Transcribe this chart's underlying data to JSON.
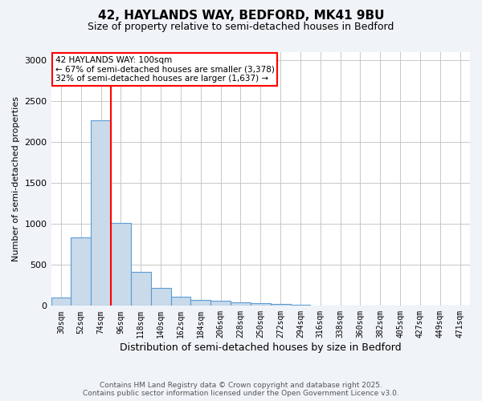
{
  "title_line1": "42, HAYLANDS WAY, BEDFORD, MK41 9BU",
  "title_line2": "Size of property relative to semi-detached houses in Bedford",
  "categories": [
    "30sqm",
    "52sqm",
    "74sqm",
    "96sqm",
    "118sqm",
    "140sqm",
    "162sqm",
    "184sqm",
    "206sqm",
    "228sqm",
    "250sqm",
    "272sqm",
    "294sqm",
    "316sqm",
    "338sqm",
    "360sqm",
    "382sqm",
    "405sqm",
    "427sqm",
    "449sqm",
    "471sqm"
  ],
  "values": [
    100,
    840,
    2270,
    1010,
    410,
    215,
    110,
    75,
    60,
    45,
    30,
    20,
    10,
    8,
    5,
    4,
    3,
    2,
    1,
    1,
    1
  ],
  "bar_color": "#c9daea",
  "bar_edge_color": "#5b9bd5",
  "grid_color": "#c8c8c8",
  "vline_color": "red",
  "vline_x_index": 3,
  "annotation_text": "42 HAYLANDS WAY: 100sqm\n← 67% of semi-detached houses are smaller (3,378)\n32% of semi-detached houses are larger (1,637) →",
  "annotation_box_color": "white",
  "annotation_box_edge": "red",
  "xlabel": "Distribution of semi-detached houses by size in Bedford",
  "ylabel": "Number of semi-detached properties",
  "ylim": [
    0,
    3100
  ],
  "yticks": [
    0,
    500,
    1000,
    1500,
    2000,
    2500,
    3000
  ],
  "footer_line1": "Contains HM Land Registry data © Crown copyright and database right 2025.",
  "footer_line2": "Contains public sector information licensed under the Open Government Licence v3.0.",
  "bg_color": "#f0f4f8",
  "plot_bg_color": "white",
  "title1_fontsize": 11,
  "title2_fontsize": 9,
  "xlabel_fontsize": 9,
  "ylabel_fontsize": 8,
  "tick_fontsize": 7,
  "footer_fontsize": 6.5,
  "annotation_fontsize": 7.5
}
